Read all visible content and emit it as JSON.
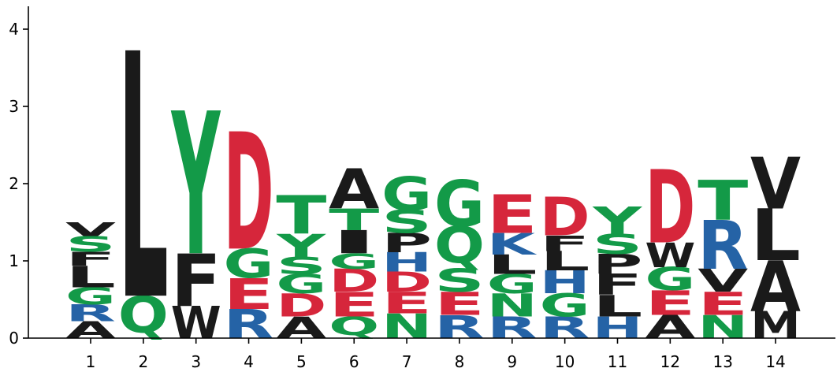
{
  "chart_data": {
    "type": "sequence-logo",
    "title": "",
    "xlabel": "",
    "ylabel": "",
    "ylim": [
      0,
      4.3
    ],
    "y_ticks": [
      "0",
      "1",
      "2",
      "3",
      "4"
    ],
    "x_ticks": [
      "1",
      "2",
      "3",
      "4",
      "5",
      "6",
      "7",
      "8",
      "9",
      "10",
      "11",
      "12",
      "13",
      "14"
    ],
    "colors": {
      "A": "#1a1a1a",
      "L": "#1a1a1a",
      "F": "#1a1a1a",
      "W": "#1a1a1a",
      "I": "#1a1a1a",
      "P": "#1a1a1a",
      "V": "#1a1a1a",
      "M": "#1a1a1a",
      "G": "#139a48",
      "S": "#139a48",
      "T": "#139a48",
      "Y": "#139a48",
      "Q": "#139a48",
      "N": "#139a48",
      "R": "#2563a6",
      "K": "#2563a6",
      "H": "#2563a6",
      "D": "#d6263b",
      "E": "#d6263b"
    },
    "positions": [
      {
        "position": "1",
        "stack": [
          [
            "A",
            0.22
          ],
          [
            "R",
            0.22
          ],
          [
            "G",
            0.22
          ],
          [
            "L",
            0.28
          ],
          [
            "F",
            0.18
          ],
          [
            "S",
            0.2
          ],
          [
            "V",
            0.18
          ]
        ]
      },
      {
        "position": "2",
        "stack": [
          [
            "Q",
            0.55
          ],
          [
            "L",
            3.18
          ]
        ]
      },
      {
        "position": "3",
        "stack": [
          [
            "W",
            0.42
          ],
          [
            "F",
            0.68
          ],
          [
            "Y",
            1.85
          ]
        ]
      },
      {
        "position": "4",
        "stack": [
          [
            "R",
            0.38
          ],
          [
            "E",
            0.4
          ],
          [
            "G",
            0.38
          ],
          [
            "D",
            1.52
          ]
        ]
      },
      {
        "position": "5",
        "stack": [
          [
            "A",
            0.28
          ],
          [
            "D",
            0.3
          ],
          [
            "G",
            0.25
          ],
          [
            "S",
            0.22
          ],
          [
            "Y",
            0.3
          ],
          [
            "T",
            0.5
          ]
        ]
      },
      {
        "position": "6",
        "stack": [
          [
            "Q",
            0.28
          ],
          [
            "E",
            0.32
          ],
          [
            "D",
            0.3
          ],
          [
            "G",
            0.2
          ],
          [
            "I",
            0.3
          ],
          [
            "T",
            0.28
          ],
          [
            "A",
            0.52
          ]
        ]
      },
      {
        "position": "7",
        "stack": [
          [
            "N",
            0.32
          ],
          [
            "E",
            0.28
          ],
          [
            "D",
            0.26
          ],
          [
            "H",
            0.25
          ],
          [
            "P",
            0.25
          ],
          [
            "S",
            0.3
          ],
          [
            "G",
            0.44
          ]
        ]
      },
      {
        "position": "8",
        "stack": [
          [
            "R",
            0.3
          ],
          [
            "E",
            0.3
          ],
          [
            "S",
            0.3
          ],
          [
            "Q",
            0.55
          ],
          [
            "G",
            0.6
          ]
        ]
      },
      {
        "position": "9",
        "stack": [
          [
            "R",
            0.28
          ],
          [
            "N",
            0.3
          ],
          [
            "G",
            0.25
          ],
          [
            "L",
            0.25
          ],
          [
            "K",
            0.28
          ],
          [
            "E",
            0.5
          ]
        ]
      },
      {
        "position": "10",
        "stack": [
          [
            "R",
            0.28
          ],
          [
            "G",
            0.3
          ],
          [
            "H",
            0.3
          ],
          [
            "L",
            0.25
          ],
          [
            "F",
            0.2
          ],
          [
            "D",
            0.5
          ]
        ]
      },
      {
        "position": "11",
        "stack": [
          [
            "H",
            0.28
          ],
          [
            "L",
            0.28
          ],
          [
            "F",
            0.27
          ],
          [
            "P",
            0.26
          ],
          [
            "S",
            0.26
          ],
          [
            "Y",
            0.35
          ]
        ]
      },
      {
        "position": "12",
        "stack": [
          [
            "A",
            0.3
          ],
          [
            "E",
            0.32
          ],
          [
            "G",
            0.3
          ],
          [
            "W",
            0.32
          ],
          [
            "D",
            0.95
          ]
        ]
      },
      {
        "position": "13",
        "stack": [
          [
            "N",
            0.3
          ],
          [
            "E",
            0.3
          ],
          [
            "V",
            0.3
          ],
          [
            "R",
            0.63
          ],
          [
            "T",
            0.52
          ]
        ]
      },
      {
        "position": "14",
        "stack": [
          [
            "M",
            0.35
          ],
          [
            "A",
            0.66
          ],
          [
            "L",
            0.67
          ],
          [
            "V",
            0.67
          ]
        ]
      }
    ]
  }
}
